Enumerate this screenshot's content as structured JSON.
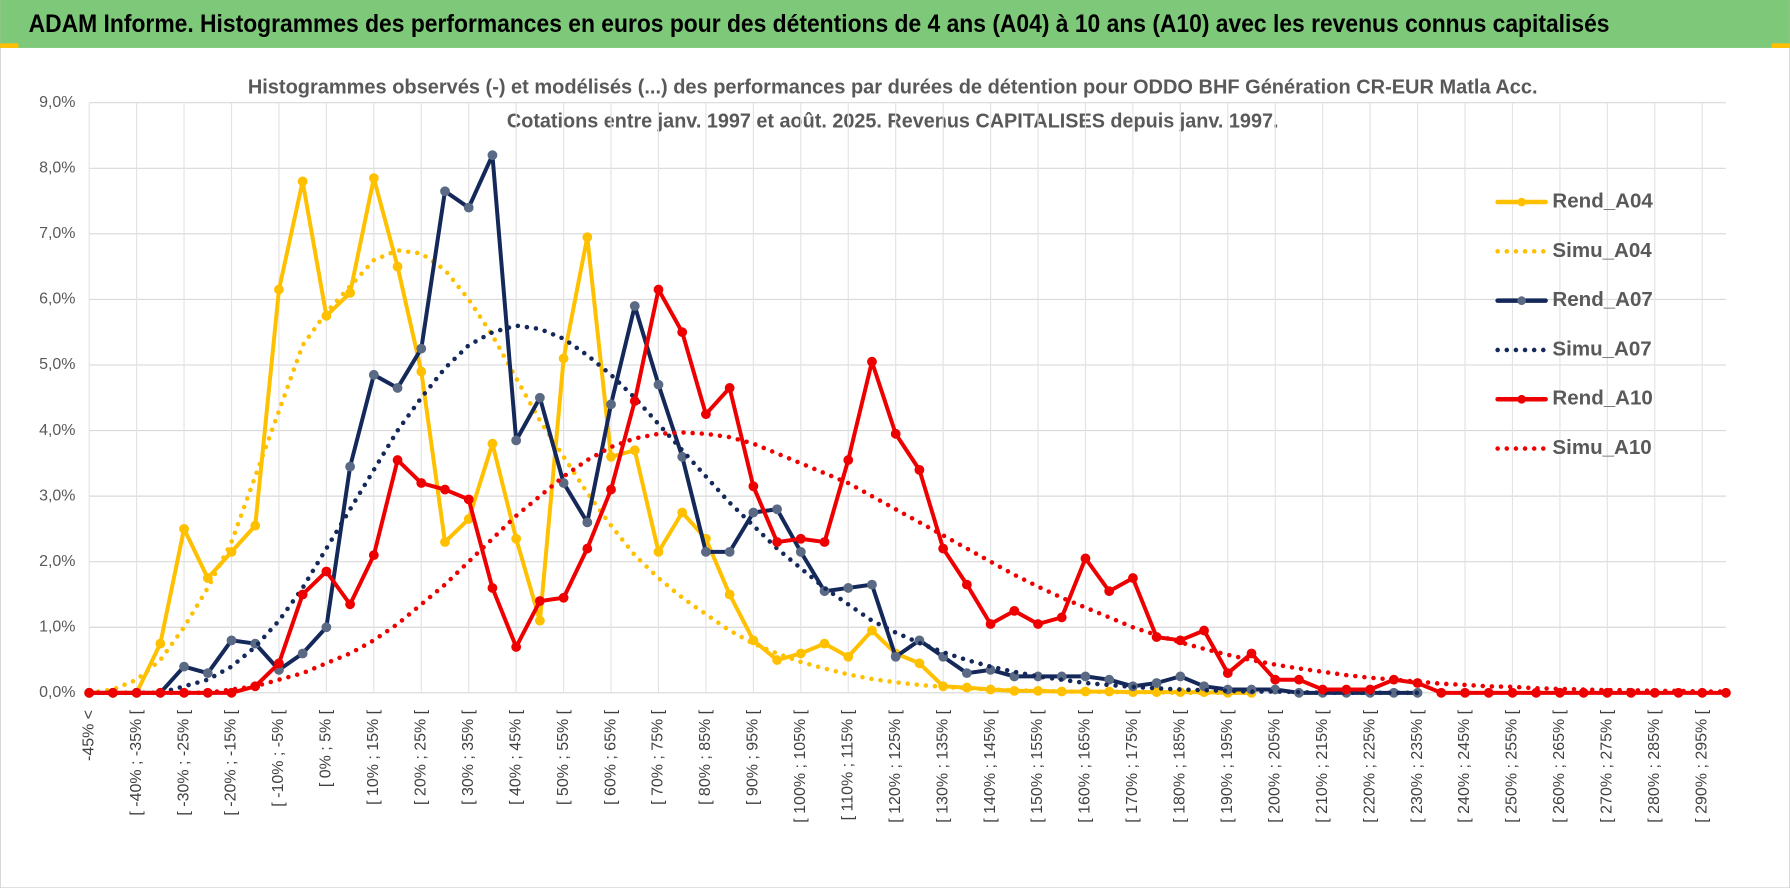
{
  "header": {
    "title": "ADAM Informe. Histogrammes des performances en euros pour des détentions de 4 ans (A04) à 10 ans (A10) avec les revenus connus capitalisés"
  },
  "chart_data": {
    "type": "line",
    "title": "Histogrammes observés (-) et modélisés (...) des performances par durées de détention pour ODDO BHF Génération CR-EUR Matla Acc.",
    "subtitle": "Cotations entre janv. 1997 et août. 2025. Revenus CAPITALISES depuis janv. 1997.",
    "categories": [
      "-45% <",
      null,
      "[ -40% ; -35% [",
      null,
      "[ -30% ; -25% [",
      null,
      "[ -20% ; -15% [",
      null,
      "[ -10% ; -5% [",
      null,
      "[ 0% ; 5% [",
      null,
      "[ 10% ; 15% [",
      null,
      "[ 20% ; 25% [",
      null,
      "[ 30% ; 35% [",
      null,
      "[ 40% ; 45% [",
      null,
      "[ 50% ; 55% [",
      null,
      "[ 60% ; 65% [",
      null,
      "[ 70% ; 75% [",
      null,
      "[ 80% ; 85% [",
      null,
      "[ 90% ; 95% [",
      null,
      "[ 100% ; 105% [",
      null,
      "[ 110% ; 115% [",
      null,
      "[ 120% ; 125% [",
      null,
      "[ 130% ; 135% [",
      null,
      "[ 140% ; 145% [",
      null,
      "[ 150% ; 155% [",
      null,
      "[ 160% ; 165% [",
      null,
      "[ 170% ; 175% [",
      null,
      "[ 180% ; 185% [",
      null,
      "[ 190% ; 195% [",
      null,
      "[ 200% ; 205% [",
      null,
      "[ 210% ; 215% [",
      null,
      "[ 220% ; 225% [",
      null,
      "[ 230% ; 235% [",
      null,
      "[ 240% ; 245% [",
      null,
      "[ 250% ; 255% [",
      null,
      "[ 260% ; 265% [",
      null,
      "[ 270% ; 275% [",
      null,
      "[ 280% ; 285% [",
      null,
      "[ 290% ; 295% [",
      null
    ],
    "series": [
      {
        "name": "Rend_A04",
        "color": "#ffc000",
        "style": "solid",
        "markers": true,
        "marker_color": "#ffc000",
        "values": [
          0,
          0,
          0,
          0.75,
          2.5,
          1.75,
          2.15,
          2.55,
          6.15,
          7.8,
          5.75,
          6.1,
          7.85,
          6.5,
          4.9,
          2.3,
          2.65,
          3.8,
          2.35,
          1.1,
          5.1,
          6.95,
          3.6,
          3.7,
          2.15,
          2.75,
          2.35,
          1.5,
          0.8,
          0.5,
          0.6,
          0.75,
          0.55,
          0.95,
          0.6,
          0.45,
          0.1,
          0.08,
          0.05,
          0.03,
          0.03,
          0.02,
          0.02,
          0.02,
          0.01,
          0.01,
          0.01,
          0.01,
          0,
          0,
          null,
          null,
          null,
          null,
          null,
          null,
          null,
          null,
          null,
          null,
          null,
          null,
          null,
          null,
          null,
          null,
          null,
          null,
          null,
          null
        ]
      },
      {
        "name": "Simu_A04",
        "color": "#ffc000",
        "style": "dotted",
        "markers": false,
        "values": [
          0,
          0.05,
          0.2,
          0.5,
          1.0,
          1.6,
          2.3,
          3.3,
          4.3,
          5.3,
          5.8,
          6.2,
          6.6,
          6.75,
          6.7,
          6.45,
          6.0,
          5.45,
          4.8,
          4.15,
          3.6,
          3.05,
          2.55,
          2.1,
          1.75,
          1.45,
          1.2,
          0.95,
          0.75,
          0.6,
          0.47,
          0.37,
          0.28,
          0.21,
          0.16,
          0.12,
          0.09,
          0.07,
          0.05,
          0.04,
          0.03,
          0.02,
          0.02,
          0.01,
          0.01,
          0.01,
          0,
          0,
          0,
          0,
          null,
          null,
          null,
          null,
          null,
          null,
          null,
          null,
          null,
          null,
          null,
          null,
          null,
          null,
          null,
          null,
          null,
          null,
          null,
          null
        ]
      },
      {
        "name": "Rend_A07",
        "color": "#14285a",
        "style": "solid",
        "markers": true,
        "marker_color": "#5b6a84",
        "values": [
          0,
          0,
          0,
          0,
          0.4,
          0.3,
          0.8,
          0.75,
          0.35,
          0.6,
          1.0,
          3.45,
          4.85,
          4.65,
          5.25,
          7.65,
          7.4,
          8.2,
          3.85,
          4.5,
          3.2,
          2.6,
          4.4,
          5.9,
          4.7,
          3.6,
          2.15,
          2.15,
          2.75,
          2.8,
          2.15,
          1.55,
          1.6,
          1.65,
          0.55,
          0.8,
          0.55,
          0.3,
          0.35,
          0.25,
          0.25,
          0.25,
          0.25,
          0.2,
          0.1,
          0.15,
          0.25,
          0.1,
          0.05,
          0.05,
          0.05,
          0,
          0,
          0,
          0,
          0,
          0,
          null,
          null,
          null,
          null,
          null,
          null,
          null,
          null,
          null,
          null,
          null,
          null,
          null
        ]
      },
      {
        "name": "Simu_A07",
        "color": "#14285a",
        "style": "dotted",
        "markers": false,
        "values": [
          0,
          0,
          0,
          0,
          0.1,
          0.2,
          0.4,
          0.7,
          1.1,
          1.6,
          2.2,
          2.8,
          3.4,
          4.0,
          4.5,
          4.95,
          5.3,
          5.5,
          5.6,
          5.55,
          5.4,
          5.15,
          4.85,
          4.5,
          4.1,
          3.7,
          3.3,
          2.9,
          2.55,
          2.2,
          1.9,
          1.6,
          1.35,
          1.1,
          0.92,
          0.76,
          0.62,
          0.5,
          0.4,
          0.32,
          0.25,
          0.2,
          0.15,
          0.12,
          0.09,
          0.07,
          0.05,
          0.04,
          0.03,
          0.02,
          0.02,
          0.01,
          0,
          0,
          0,
          0,
          0,
          null,
          null,
          null,
          null,
          null,
          null,
          null,
          null,
          null,
          null,
          null,
          null,
          null
        ]
      },
      {
        "name": "Rend_A10",
        "color": "#ee0000",
        "style": "solid",
        "markers": true,
        "marker_color": "#ee0000",
        "values": [
          0,
          0,
          0,
          0,
          0,
          0,
          0,
          0.1,
          0.45,
          1.5,
          1.85,
          1.35,
          2.1,
          3.55,
          3.2,
          3.1,
          2.95,
          1.6,
          0.7,
          1.4,
          1.45,
          2.2,
          3.1,
          4.45,
          6.15,
          5.5,
          4.25,
          4.65,
          3.15,
          2.3,
          2.35,
          2.3,
          3.55,
          5.05,
          3.95,
          3.4,
          2.2,
          1.65,
          1.05,
          1.25,
          1.05,
          1.15,
          2.05,
          1.55,
          1.75,
          0.85,
          0.8,
          0.95,
          0.3,
          0.6,
          0.2,
          0.2,
          0.05,
          0.05,
          0.05,
          0.2,
          0.15,
          0,
          0,
          0,
          0,
          0,
          0,
          0,
          0,
          0,
          0,
          0,
          0,
          0
        ]
      },
      {
        "name": "Simu_A10",
        "color": "#ee0000",
        "style": "dotted",
        "markers": false,
        "values": [
          0,
          0,
          0,
          0,
          0,
          0,
          0.05,
          0.1,
          0.2,
          0.3,
          0.45,
          0.6,
          0.8,
          1.05,
          1.35,
          1.65,
          2.0,
          2.35,
          2.7,
          3.0,
          3.3,
          3.55,
          3.75,
          3.88,
          3.95,
          3.97,
          3.95,
          3.9,
          3.8,
          3.65,
          3.5,
          3.35,
          3.2,
          3.0,
          2.8,
          2.6,
          2.4,
          2.2,
          2.0,
          1.8,
          1.62,
          1.45,
          1.3,
          1.15,
          1.0,
          0.88,
          0.77,
          0.67,
          0.58,
          0.5,
          0.43,
          0.37,
          0.32,
          0.27,
          0.23,
          0.2,
          0.17,
          0.14,
          0.12,
          0.1,
          0.09,
          0.07,
          0.06,
          0.05,
          0.04,
          0.04,
          0.03,
          0.03,
          0.02,
          0.02
        ]
      }
    ],
    "ylim": [
      0,
      9
    ],
    "yticks": [
      {
        "value": 0,
        "label": "0,0%"
      },
      {
        "value": 1,
        "label": "1,0%"
      },
      {
        "value": 2,
        "label": "2,0%"
      },
      {
        "value": 3,
        "label": "3,0%"
      },
      {
        "value": 4,
        "label": "4,0%"
      },
      {
        "value": 5,
        "label": "5,0%"
      },
      {
        "value": 6,
        "label": "6,0%"
      },
      {
        "value": 7,
        "label": "7,0%"
      },
      {
        "value": 8,
        "label": "8,0%"
      },
      {
        "value": 9,
        "label": "9,0%"
      }
    ],
    "grid": true,
    "legend": "right"
  }
}
